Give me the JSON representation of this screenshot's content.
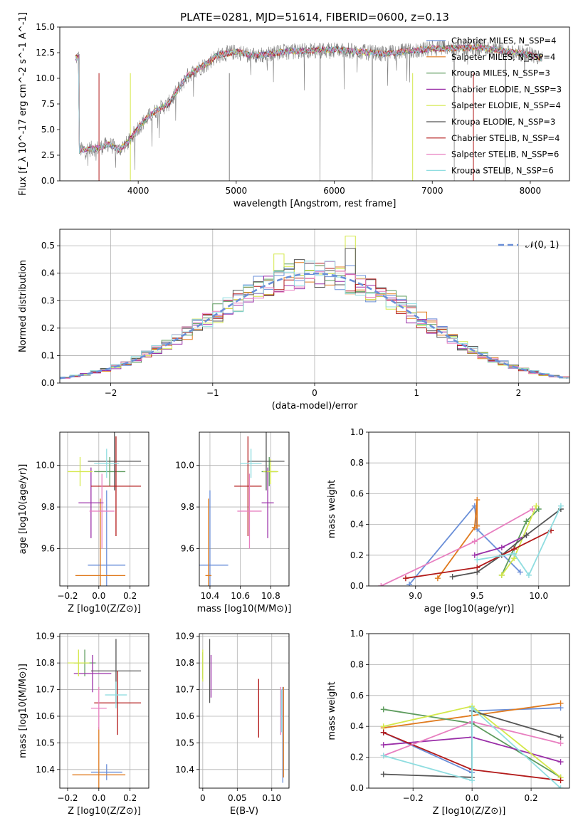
{
  "figure_title": "PLATE=0281, MJD=51614, FIBERID=0600, z=0.13",
  "colors": [
    "#6a8fd8",
    "#e07b1f",
    "#5e9c5e",
    "#9a2fa8",
    "#d4e84b",
    "#555555",
    "#b31b1b",
    "#e87fc0",
    "#8fdde0"
  ],
  "chart_data": [
    {
      "id": "spectrum",
      "type": "line",
      "title": "PLATE=0281, MJD=51614, FIBERID=0600, z=0.13",
      "xlabel": "wavelength [Angstrom, rest frame]",
      "ylabel": "Flux [f_λ 10^-17 erg cm^-2 s^-1 A^-1]",
      "xlim": [
        3200,
        8400
      ],
      "ylim": [
        0,
        15
      ],
      "xticks": [
        4000,
        5000,
        6000,
        7000,
        8000
      ],
      "yticks": [
        0.0,
        2.5,
        5.0,
        7.5,
        10.0,
        12.5,
        15.0
      ],
      "legend_position": "top-right",
      "grid": false,
      "continuum": [
        [
          3400,
          3.0
        ],
        [
          3600,
          3.2
        ],
        [
          3700,
          3.6
        ],
        [
          3800,
          3.0
        ],
        [
          3900,
          3.8
        ],
        [
          4000,
          5.2
        ],
        [
          4100,
          6.2
        ],
        [
          4200,
          7.0
        ],
        [
          4300,
          7.4
        ],
        [
          4400,
          8.8
        ],
        [
          4500,
          10.2
        ],
        [
          4600,
          10.9
        ],
        [
          4700,
          11.4
        ],
        [
          4800,
          12.2
        ],
        [
          5000,
          12.6
        ],
        [
          5200,
          12.2
        ],
        [
          5500,
          12.6
        ],
        [
          6000,
          12.8
        ],
        [
          6500,
          12.4
        ],
        [
          7000,
          12.9
        ],
        [
          7500,
          13.0
        ],
        [
          8000,
          12.3
        ],
        [
          8100,
          12.0
        ]
      ],
      "series": [
        {
          "name": "Chabrier MILES, N_SSP=4",
          "color": "#6a8fd8"
        },
        {
          "name": "Salpeter MILES, N_SSP=4",
          "color": "#e07b1f"
        },
        {
          "name": "Kroupa MILES, N_SSP=3",
          "color": "#5e9c5e"
        },
        {
          "name": "Chabrier ELODIE, N_SSP=3",
          "color": "#9a2fa8"
        },
        {
          "name": "Salpeter ELODIE, N_SSP=4",
          "color": "#d4e84b"
        },
        {
          "name": "Kroupa ELODIE, N_SSP=3",
          "color": "#555555"
        },
        {
          "name": "Chabrier STELIB, N_SSP=4",
          "color": "#b31b1b"
        },
        {
          "name": "Salpeter STELIB, N_SSP=6",
          "color": "#e87fc0"
        },
        {
          "name": "Kroupa STELIB, N_SSP=6",
          "color": "#8fdde0"
        }
      ]
    },
    {
      "id": "residuals",
      "type": "histogram",
      "xlabel": "(data-model)/error",
      "ylabel": "Normed distribution",
      "xlim": [
        -2.5,
        2.5
      ],
      "ylim": [
        0,
        0.56
      ],
      "xticks": [
        -2,
        -1,
        0,
        1,
        2
      ],
      "yticks": [
        0.0,
        0.1,
        0.2,
        0.3,
        0.4,
        0.5
      ],
      "grid": true,
      "legend_position": "top-right",
      "reference_name": "𝒩(0, 1)",
      "reference_color": "#6a8fd8",
      "bin_width": 0.1
    },
    {
      "id": "age_vs_Z",
      "type": "errorbar",
      "xlabel": "Z [log10(Z/Z⊙)]",
      "ylabel": "age [log10(age/yr)]",
      "xlim": [
        -0.25,
        0.32
      ],
      "ylim": [
        9.42,
        10.16
      ],
      "xticks": [
        -0.2,
        0.0,
        0.2
      ],
      "yticks": [
        9.6,
        9.8,
        10.0
      ],
      "grid": true,
      "points": [
        {
          "x": 0.05,
          "xerr": 0.12,
          "y": 9.52,
          "yerr": 0.36,
          "color": "#6a8fd8"
        },
        {
          "x": 0.01,
          "xerr": 0.16,
          "y": 9.47,
          "yerr": 0.37,
          "color": "#e07b1f"
        },
        {
          "x": 0.07,
          "xerr": 0.1,
          "y": 9.97,
          "yerr": 0.07,
          "color": "#5e9c5e"
        },
        {
          "x": -0.05,
          "xerr": 0.08,
          "y": 9.82,
          "yerr": 0.17,
          "color": "#9a2fa8"
        },
        {
          "x": -0.12,
          "xerr": 0.08,
          "y": 9.97,
          "yerr": 0.07,
          "color": "#d4e84b"
        },
        {
          "x": 0.1,
          "xerr": 0.17,
          "y": 10.02,
          "yerr": 0.14,
          "color": "#555555"
        },
        {
          "x": 0.11,
          "xerr": 0.16,
          "y": 9.9,
          "yerr": 0.24,
          "color": "#b31b1b"
        },
        {
          "x": 0.02,
          "xerr": 0.08,
          "y": 9.78,
          "yerr": 0.18,
          "color": "#e87fc0"
        },
        {
          "x": 0.05,
          "xerr": 0.08,
          "y": 10.01,
          "yerr": 0.07,
          "color": "#8fdde0"
        }
      ]
    },
    {
      "id": "age_vs_mass",
      "type": "errorbar",
      "xlabel": "mass [log10(M/M⊙)]",
      "ylabel": "",
      "xlim": [
        10.33,
        10.92
      ],
      "ylim": [
        9.42,
        10.16
      ],
      "xticks": [
        10.4,
        10.6,
        10.8
      ],
      "yticks": [
        9.6,
        9.8,
        10.0
      ],
      "grid": true,
      "points": [
        {
          "x": 10.4,
          "xerr": 0.12,
          "y": 9.52,
          "yerr": 0.36,
          "color": "#6a8fd8"
        },
        {
          "x": 10.39,
          "xerr": 0.02,
          "y": 9.47,
          "yerr": 0.37,
          "color": "#e07b1f"
        },
        {
          "x": 10.79,
          "xerr": 0.05,
          "y": 9.97,
          "yerr": 0.07,
          "color": "#5e9c5e"
        },
        {
          "x": 10.78,
          "xerr": 0.04,
          "y": 9.82,
          "yerr": 0.17,
          "color": "#9a2fa8"
        },
        {
          "x": 10.8,
          "xerr": 0.05,
          "y": 9.97,
          "yerr": 0.06,
          "color": "#d4e84b"
        },
        {
          "x": 10.77,
          "xerr": 0.12,
          "y": 10.02,
          "yerr": 0.14,
          "color": "#555555"
        },
        {
          "x": 10.65,
          "xerr": 0.09,
          "y": 9.9,
          "yerr": 0.24,
          "color": "#b31b1b"
        },
        {
          "x": 10.66,
          "xerr": 0.08,
          "y": 9.78,
          "yerr": 0.18,
          "color": "#e87fc0"
        },
        {
          "x": 10.67,
          "xerr": 0.07,
          "y": 10.01,
          "yerr": 0.07,
          "color": "#8fdde0"
        }
      ]
    },
    {
      "id": "weight_vs_age",
      "type": "line",
      "xlabel": "age [log10(age/yr)]",
      "ylabel": "mass weight",
      "xlim": [
        8.62,
        10.25
      ],
      "ylim": [
        0,
        1.0
      ],
      "xticks": [
        9.0,
        9.5,
        10.0
      ],
      "yticks": [
        0.0,
        0.2,
        0.4,
        0.6,
        0.8,
        1.0
      ],
      "grid": true,
      "series": [
        {
          "color": "#6a8fd8",
          "x": [
            8.95,
            9.48,
            9.5,
            9.85
          ],
          "y": [
            0.01,
            0.52,
            0.37,
            0.09
          ]
        },
        {
          "color": "#e07b1f",
          "x": [
            9.18,
            9.48,
            9.5,
            9.5
          ],
          "y": [
            0.05,
            0.38,
            0.56,
            0.39
          ]
        },
        {
          "color": "#5e9c5e",
          "x": [
            9.7,
            9.9,
            10.0
          ],
          "y": [
            0.07,
            0.42,
            0.5
          ]
        },
        {
          "color": "#9a2fa8",
          "x": [
            9.48,
            9.7,
            9.9
          ],
          "y": [
            0.2,
            0.25,
            0.33
          ]
        },
        {
          "color": "#d4e84b",
          "x": [
            9.7,
            9.8,
            9.98
          ],
          "y": [
            0.07,
            0.18,
            0.52
          ]
        },
        {
          "color": "#555555",
          "x": [
            9.3,
            9.5,
            9.7,
            9.9,
            10.18
          ],
          "y": [
            0.06,
            0.09,
            0.2,
            0.33,
            0.5
          ]
        },
        {
          "color": "#b31b1b",
          "x": [
            8.92,
            9.5,
            9.8,
            10.1
          ],
          "y": [
            0.05,
            0.12,
            0.24,
            0.36
          ]
        },
        {
          "color": "#e87fc0",
          "x": [
            8.72,
            9.48,
            9.95
          ],
          "y": [
            0.0,
            0.29,
            0.5
          ]
        },
        {
          "color": "#8fdde0",
          "x": [
            9.5,
            9.8,
            9.92,
            10.18
          ],
          "y": [
            0.17,
            0.21,
            0.07,
            0.52
          ]
        }
      ]
    },
    {
      "id": "mass_vs_Z",
      "type": "errorbar",
      "xlabel": "Z [log10(Z/Z⊙)]",
      "ylabel": "mass [log10(M/M⊙)]",
      "xlim": [
        -0.25,
        0.32
      ],
      "ylim": [
        10.33,
        10.91
      ],
      "xticks": [
        -0.2,
        0.0,
        0.2
      ],
      "yticks": [
        10.4,
        10.5,
        10.6,
        10.7,
        10.8,
        10.9
      ],
      "grid": true,
      "points": [
        {
          "x": 0.05,
          "xerr": 0.1,
          "y": 10.39,
          "yerr": 0.03,
          "color": "#6a8fd8"
        },
        {
          "x": 0.0,
          "xerr": 0.17,
          "y": 10.38,
          "yerr": 0.18,
          "color": "#e07b1f"
        },
        {
          "x": -0.09,
          "xerr": 0.07,
          "y": 10.8,
          "yerr": 0.05,
          "color": "#5e9c5e"
        },
        {
          "x": -0.04,
          "xerr": 0.12,
          "y": 10.76,
          "yerr": 0.07,
          "color": "#9a2fa8"
        },
        {
          "x": -0.13,
          "xerr": 0.07,
          "y": 10.8,
          "yerr": 0.05,
          "color": "#d4e84b"
        },
        {
          "x": 0.11,
          "xerr": 0.16,
          "y": 10.77,
          "yerr": 0.12,
          "color": "#555555"
        },
        {
          "x": 0.12,
          "xerr": 0.15,
          "y": 10.65,
          "yerr": 0.12,
          "color": "#b31b1b"
        },
        {
          "x": 0.0,
          "xerr": 0.05,
          "y": 10.63,
          "yerr": 0.08,
          "color": "#e87fc0"
        },
        {
          "x": 0.11,
          "xerr": 0.07,
          "y": 10.68,
          "yerr": 0.05,
          "color": "#8fdde0"
        }
      ]
    },
    {
      "id": "mass_vs_ebv",
      "type": "errorbar",
      "xlabel": "E(B-V)",
      "ylabel": "",
      "xlim": [
        -0.005,
        0.125
      ],
      "ylim": [
        10.33,
        10.91
      ],
      "xticks": [
        0.0,
        0.05,
        0.1
      ],
      "xticklabels": [
        "0",
        "0.05",
        "0.10"
      ],
      "yticks": [
        10.4,
        10.5,
        10.6,
        10.7,
        10.8,
        10.9
      ],
      "grid": true,
      "points": [
        {
          "x": 0.116,
          "y": 10.53,
          "yerr": 0.18,
          "color": "#6a8fd8"
        },
        {
          "x": 0.117,
          "y": 10.54,
          "yerr": 0.17,
          "color": "#e07b1f"
        },
        {
          "x": 0.0,
          "y": 10.79,
          "yerr": 0.05,
          "color": "#5e9c5e"
        },
        {
          "x": 0.012,
          "y": 10.75,
          "yerr": 0.08,
          "color": "#9a2fa8"
        },
        {
          "x": 0.0,
          "y": 10.79,
          "yerr": 0.06,
          "color": "#d4e84b"
        },
        {
          "x": 0.01,
          "y": 10.77,
          "yerr": 0.12,
          "color": "#555555"
        },
        {
          "x": 0.081,
          "y": 10.63,
          "yerr": 0.11,
          "color": "#b31b1b"
        },
        {
          "x": 0.113,
          "y": 10.62,
          "yerr": 0.09,
          "color": "#e87fc0"
        },
        {
          "x": 0.114,
          "y": 10.62,
          "yerr": 0.08,
          "color": "#8fdde0"
        }
      ]
    },
    {
      "id": "weight_vs_Z",
      "type": "line",
      "xlabel": "Z [log10(Z/Z⊙)]",
      "ylabel": "mass weight",
      "xlim": [
        -0.35,
        0.33
      ],
      "ylim": [
        0,
        1.0
      ],
      "xticks": [
        -0.2,
        0.0,
        0.2
      ],
      "yticks": [
        0.0,
        0.2,
        0.4,
        0.6,
        0.8,
        1.0
      ],
      "grid": true,
      "series": [
        {
          "color": "#6a8fd8",
          "x": [
            -0.3,
            0.0,
            0.0,
            0.3
          ],
          "y": [
            0.36,
            0.1,
            0.5,
            0.52
          ]
        },
        {
          "color": "#e07b1f",
          "x": [
            -0.3,
            0.0,
            0.3
          ],
          "y": [
            0.39,
            0.47,
            0.55
          ]
        },
        {
          "color": "#5e9c5e",
          "x": [
            -0.3,
            0.0,
            0.3
          ],
          "y": [
            0.51,
            0.42,
            0.07
          ]
        },
        {
          "color": "#9a2fa8",
          "x": [
            -0.3,
            0.0,
            0.3
          ],
          "y": [
            0.28,
            0.33,
            0.17
          ]
        },
        {
          "color": "#d4e84b",
          "x": [
            -0.3,
            0.0,
            0.3
          ],
          "y": [
            0.4,
            0.53,
            0.07
          ]
        },
        {
          "color": "#555555",
          "x": [
            -0.3,
            0.0,
            0.0,
            0.3
          ],
          "y": [
            0.09,
            0.07,
            0.5,
            0.33
          ]
        },
        {
          "color": "#b31b1b",
          "x": [
            -0.3,
            0.0,
            0.3
          ],
          "y": [
            0.36,
            0.12,
            0.05
          ]
        },
        {
          "color": "#e87fc0",
          "x": [
            -0.3,
            0.0,
            0.3
          ],
          "y": [
            0.21,
            0.43,
            0.29
          ]
        },
        {
          "color": "#8fdde0",
          "x": [
            -0.3,
            0.0,
            0.0,
            0.3
          ],
          "y": [
            0.21,
            0.05,
            0.52,
            0.0
          ]
        }
      ]
    }
  ]
}
